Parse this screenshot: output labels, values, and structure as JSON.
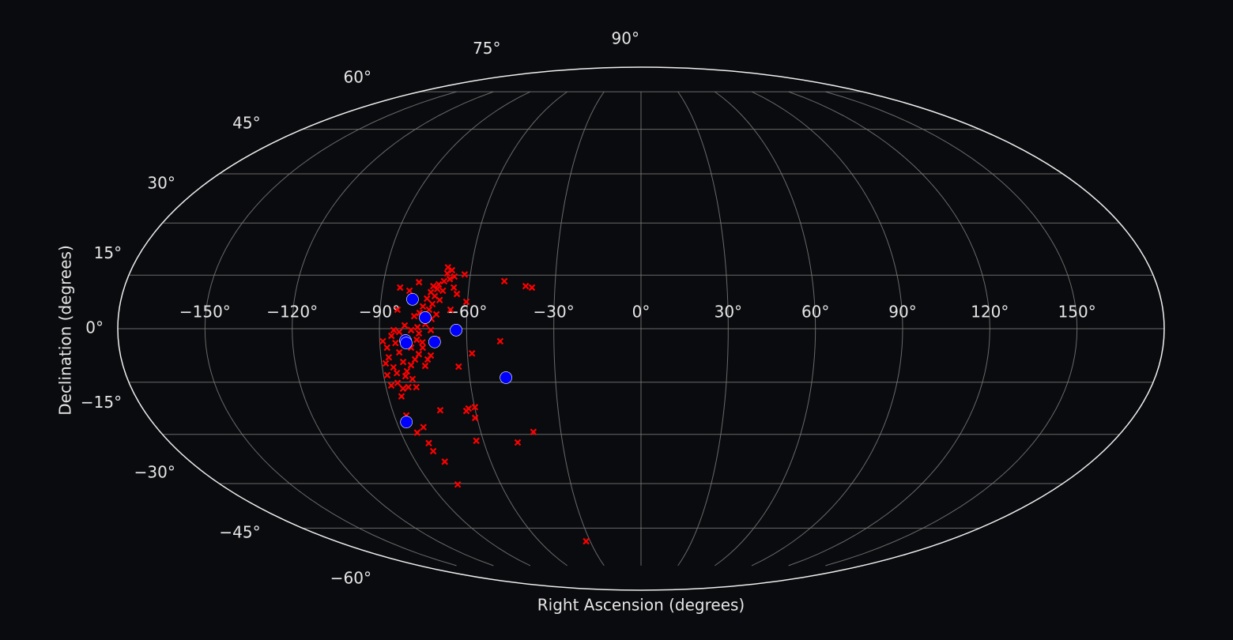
{
  "chart_data": {
    "type": "scatter",
    "projection": "mollweide",
    "xlabel": "Right Ascension (degrees)",
    "ylabel": "Declination (degrees)",
    "xlim": [
      -180,
      180
    ],
    "ylim": [
      -90,
      90
    ],
    "grid": true,
    "xticks": [
      {
        "value": -150,
        "label": "−150°"
      },
      {
        "value": -120,
        "label": "−120°"
      },
      {
        "value": -90,
        "label": "−90°"
      },
      {
        "value": -60,
        "label": "−60°"
      },
      {
        "value": -30,
        "label": "−30°"
      },
      {
        "value": 0,
        "label": "0°"
      },
      {
        "value": 30,
        "label": "30°"
      },
      {
        "value": 60,
        "label": "60°"
      },
      {
        "value": 90,
        "label": "90°"
      },
      {
        "value": 120,
        "label": "120°"
      },
      {
        "value": 150,
        "label": "150°"
      }
    ],
    "yticks": [
      {
        "value": -60,
        "label": "−60°"
      },
      {
        "value": -45,
        "label": "−45°"
      },
      {
        "value": -30,
        "label": "−30°"
      },
      {
        "value": -15,
        "label": "−15°"
      },
      {
        "value": 0,
        "label": "0°"
      },
      {
        "value": 15,
        "label": "15°"
      },
      {
        "value": 30,
        "label": "30°"
      },
      {
        "value": 45,
        "label": "45°"
      },
      {
        "value": 60,
        "label": "60°"
      },
      {
        "value": 75,
        "label": "75°"
      },
      {
        "value": 90,
        "label": "90°"
      }
    ],
    "series": [
      {
        "color": "#ff0000",
        "marker": "x",
        "x": [
          -68.3,
          -66.7,
          -68.2,
          -65.5,
          -67.0,
          -68.9,
          -62.0,
          -70.6,
          -72.4,
          -70.9,
          -68.9,
          -73.0,
          -71.5,
          -74.1,
          -69.7,
          -72.1,
          -75.3,
          -73.1,
          -76.3,
          -70.5,
          -78.1,
          -72.1,
          -74.2,
          -76.9,
          -79.1,
          -72.3,
          -76.4,
          -70.2,
          -83.9,
          -80.5,
          -77.6,
          -84.0,
          -60.4,
          -63.9,
          -65.2,
          -65.7,
          -47.8,
          -40.2,
          -38.0,
          -48.5,
          -58.4,
          -63.4,
          -73.9,
          -59.9,
          -62.3,
          -63.3,
          -72.7,
          -60.7,
          -62.7,
          -47.1,
          -40.3,
          -80.8,
          -83.9,
          -81.2,
          -80.9,
          -78.4,
          -78.5,
          -32.4,
          -85.6,
          -88.9,
          -87.6,
          -85.9,
          -84.6,
          -83.5,
          -87.3,
          -88.6,
          -86.1,
          -82.5,
          -85.2,
          -81.6,
          -79.9,
          -78.3,
          -76.8,
          -75.3,
          -88.0,
          -85.6,
          -84.1,
          -82.1,
          -80.1,
          -79.3,
          -85.3,
          -82.4,
          -88.7,
          -75.0,
          -72.7,
          -75.3,
          -83.2,
          -81.3,
          -85.1,
          -79.3,
          -77.2
        ],
        "values": [
          17.2,
          16.4,
          15.5,
          14.6,
          13.9,
          13.3,
          15.2,
          12.4,
          11.9,
          11.1,
          10.6,
          10.2,
          9.1,
          8.4,
          8.0,
          6.9,
          6.2,
          5.3,
          4.4,
          4.0,
          3.5,
          2.7,
          1.3,
          0.4,
          -0.4,
          -0.4,
          -1.3,
          -3.1,
          11.5,
          10.6,
          13.0,
          5.3,
          7.5,
          9.7,
          11.5,
          5.3,
          13.3,
          11.9,
          11.5,
          -3.5,
          -6.9,
          -10.6,
          -8.6,
          -22.1,
          -22.5,
          -23.2,
          -23.0,
          -25.2,
          -31.9,
          -32.4,
          -29.3,
          -27.9,
          -29.5,
          -32.6,
          -35.0,
          -38.2,
          -45.3,
          -64.9,
          -24.5,
          -3.5,
          -5.3,
          -2.0,
          -4.0,
          -6.6,
          -8.0,
          -9.7,
          -10.8,
          -9.3,
          -12.4,
          -11.9,
          -10.2,
          -8.6,
          -7.1,
          -5.3,
          -15.9,
          -15.2,
          -16.8,
          -16.4,
          -14.1,
          -16.4,
          -19.0,
          -13.3,
          -13.0,
          -10.4,
          -7.5,
          -3.8,
          -0.9,
          0.9,
          -0.4,
          -5.3,
          -3.1
        ]
      },
      {
        "color": "#0000ff",
        "marker": "o",
        "x": [
          -79.1,
          -74.3,
          -81.1,
          -80.9,
          -71.1,
          -63.6,
          -47.3,
          -86.4
        ],
        "values": [
          8.2,
          3.1,
          -3.3,
          -4.0,
          -3.7,
          -0.4,
          -13.7,
          -26.4
        ]
      }
    ]
  }
}
